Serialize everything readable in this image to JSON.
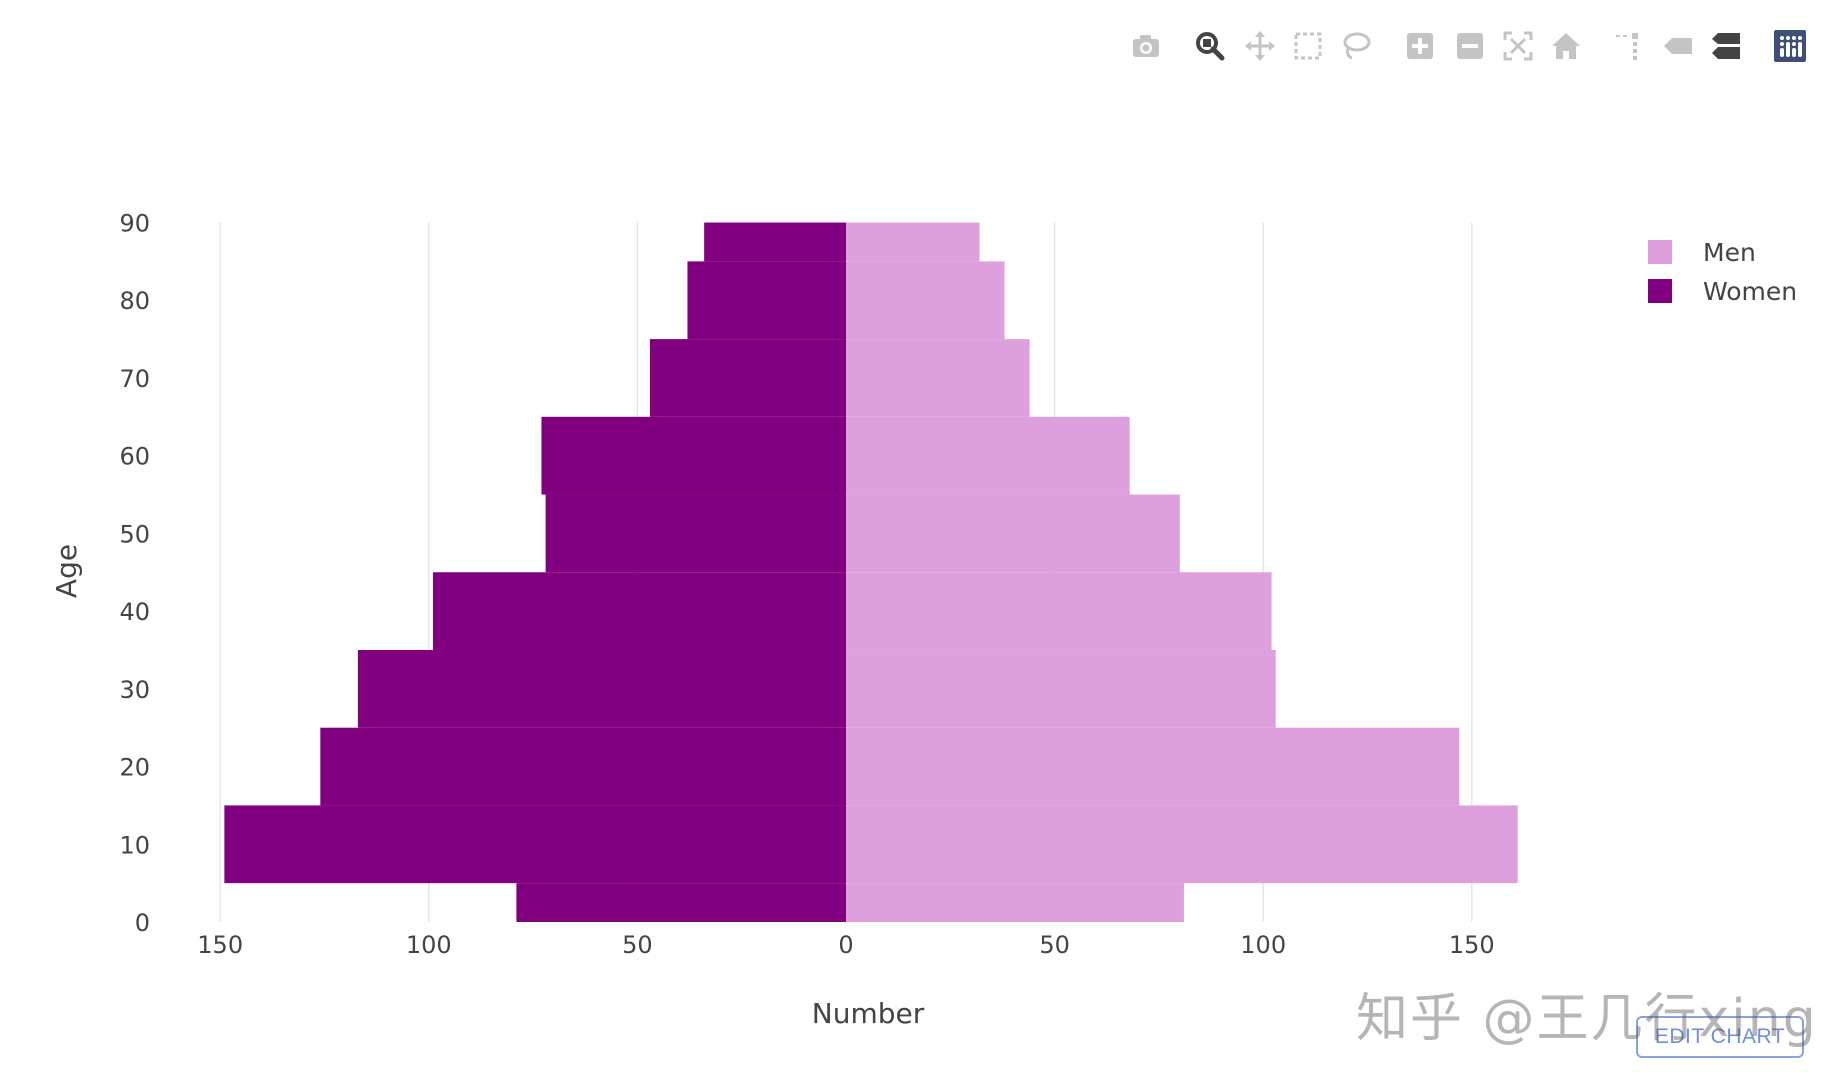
{
  "toolbar": {
    "buttons": [
      {
        "icon": "camera-icon",
        "color": "#c4c4c4"
      },
      {
        "icon": "zoom-icon",
        "color": "#444444"
      },
      {
        "icon": "pan-icon",
        "color": "#c4c4c4"
      },
      {
        "icon": "box-select-icon",
        "color": "#c4c4c4"
      },
      {
        "icon": "lasso-select-icon",
        "color": "#c4c4c4"
      },
      {
        "icon": "zoom-in-icon",
        "color": "#c4c4c4"
      },
      {
        "icon": "zoom-out-icon",
        "color": "#c4c4c4"
      },
      {
        "icon": "autoscale-icon",
        "color": "#c4c4c4"
      },
      {
        "icon": "reset-axes-icon",
        "color": "#c4c4c4"
      },
      {
        "icon": "spike-lines-icon",
        "color": "#c4c4c4"
      },
      {
        "icon": "hover-closest-icon",
        "color": "#c4c4c4"
      },
      {
        "icon": "hover-compare-icon",
        "color": "#444444"
      },
      {
        "icon": "plotly-logo-icon",
        "color": "#3f4f75"
      }
    ]
  },
  "edit_chart_label": "EDIT CHART",
  "watermark": "知乎 @王几行xing",
  "chart_data": {
    "type": "bar",
    "orientation": "horizontal",
    "barmode": "overlay",
    "xlabel": "Number",
    "ylabel": "Age",
    "xlim": [
      -150,
      160
    ],
    "ylim": [
      0,
      90
    ],
    "xticks": [
      -150,
      -100,
      -50,
      0,
      50,
      100,
      150
    ],
    "xtick_labels": [
      "150",
      "100",
      "50",
      "0",
      "50",
      "100",
      "150"
    ],
    "yticks": [
      0,
      10,
      20,
      30,
      40,
      50,
      60,
      70,
      80,
      90
    ],
    "grid": "vertical",
    "legend_position": "top-right",
    "bin_edges": [
      0,
      5,
      15,
      25,
      35,
      45,
      55,
      65,
      75,
      85,
      90
    ],
    "series": [
      {
        "name": "Men",
        "color": "#dda0dd",
        "values": [
          81,
          161,
          147,
          103,
          102,
          80,
          68,
          44,
          38,
          32
        ]
      },
      {
        "name": "Women",
        "color": "#800080",
        "values": [
          -79,
          -149,
          -126,
          -117,
          -99,
          -72,
          -73,
          -47,
          -38,
          -34
        ]
      }
    ]
  }
}
